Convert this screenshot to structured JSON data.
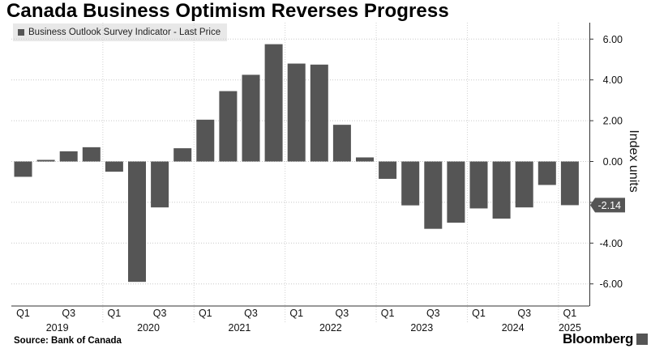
{
  "title": "Canada Business Optimism Reverses Progress",
  "legend": {
    "label": "Business Outlook Survey Indicator - Last Price",
    "color": "#555555"
  },
  "source": "Source: Bank of Canada",
  "brand": "Bloomberg",
  "chart_data": {
    "type": "bar",
    "series": [
      {
        "name": "Business Outlook Survey Indicator - Last Price",
        "color": "#555555",
        "values": [
          -0.75,
          0.08,
          0.5,
          0.7,
          -0.5,
          -5.9,
          -2.25,
          0.65,
          2.05,
          3.45,
          4.25,
          5.75,
          4.8,
          4.75,
          1.8,
          0.2,
          -0.85,
          -2.15,
          -3.3,
          -3.0,
          -2.3,
          -2.8,
          -2.25,
          -1.15,
          -2.14
        ]
      }
    ],
    "categories": [
      "Q1 2019",
      "Q2 2019",
      "Q3 2019",
      "Q4 2019",
      "Q1 2020",
      "Q2 2020",
      "Q3 2020",
      "Q4 2020",
      "Q1 2021",
      "Q2 2021",
      "Q3 2021",
      "Q4 2021",
      "Q1 2022",
      "Q2 2022",
      "Q3 2022",
      "Q4 2022",
      "Q1 2023",
      "Q2 2023",
      "Q3 2023",
      "Q4 2023",
      "Q1 2024",
      "Q2 2024",
      "Q3 2024",
      "Q4 2024",
      "Q1 2025"
    ],
    "x_tick_labels": [
      "Q1",
      "Q3",
      "Q1",
      "Q3",
      "Q1",
      "Q3",
      "Q1",
      "Q3",
      "Q1",
      "Q3",
      "Q1",
      "Q3",
      "Q1"
    ],
    "x_tick_indices": [
      0,
      2,
      4,
      6,
      8,
      10,
      12,
      14,
      16,
      18,
      20,
      22,
      24
    ],
    "year_labels": [
      "2019",
      "2020",
      "2021",
      "2022",
      "2023",
      "2024",
      "2025"
    ],
    "year_centers": [
      1.5,
      5.5,
      9.5,
      13.5,
      17.5,
      21.5,
      24
    ],
    "y_ticks": [
      "6.00",
      "4.00",
      "2.00",
      "0.00",
      "-2.00",
      "-4.00",
      "-6.00"
    ],
    "y_tick_values": [
      6,
      4,
      2,
      0,
      -2,
      -4,
      -6
    ],
    "ylim": [
      -7,
      7
    ],
    "ylabel": "Index units",
    "last_price_label": "-2.14",
    "last_price_value": -2.14,
    "grid": true
  }
}
